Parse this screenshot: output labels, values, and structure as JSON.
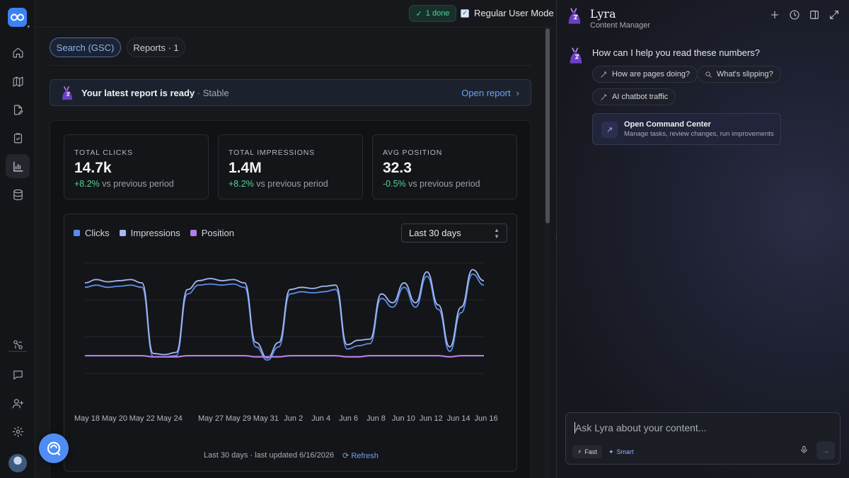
{
  "topbar": {
    "done_label": "1 done",
    "mode_label": "Regular User Mode",
    "mode_checked": true
  },
  "tabs": [
    {
      "label": "Search (GSC)",
      "active": true
    },
    {
      "label": "Reports · 1",
      "active": false
    }
  ],
  "banner": {
    "title": "Your latest report is ready",
    "separator": "·",
    "status": "Stable",
    "action": "Open report"
  },
  "stats": [
    {
      "label": "TOTAL CLICKS",
      "value": "14.7k",
      "delta": "+8.2%",
      "suffix": "vs previous period",
      "delta_color": "#4fd39a"
    },
    {
      "label": "TOTAL IMPRESSIONS",
      "value": "1.4M",
      "delta": "+8.2%",
      "suffix": "vs previous period",
      "delta_color": "#4fd39a"
    },
    {
      "label": "AVG POSITION",
      "value": "32.3",
      "delta": "-0.5%",
      "suffix": "vs previous period",
      "delta_color": "#4fd39a"
    }
  ],
  "chart": {
    "range_select": "Last 30 days",
    "footer": "Last 30 days · last updated 6/16/2026",
    "refresh": "Refresh"
  },
  "chart_data": {
    "type": "line",
    "x_tick_labels": [
      "May 18",
      "May 20",
      "May 22",
      "May 24",
      "May 27",
      "May 29",
      "May 31",
      "Jun 2",
      "Jun 4",
      "Jun 6",
      "Jun 8",
      "Jun 10",
      "Jun 12",
      "Jun 14",
      "Jun 16"
    ],
    "y_axis_visible": false,
    "grid": true,
    "legend_position": "top-left",
    "series": [
      {
        "name": "Clicks",
        "color": "#5b8def",
        "values": [
          0.78,
          0.8,
          0.78,
          0.79,
          0.8,
          0.78,
          0.15,
          0.15,
          0.16,
          0.72,
          0.8,
          0.81,
          0.8,
          0.81,
          0.78,
          0.24,
          0.12,
          0.24,
          0.72,
          0.74,
          0.73,
          0.74,
          0.76,
          0.22,
          0.25,
          0.27,
          0.68,
          0.6,
          0.78,
          0.6,
          0.88,
          0.58,
          0.2,
          0.55,
          0.9,
          0.8
        ]
      },
      {
        "name": "Impressions",
        "color": "#a3b9f0",
        "values": [
          0.82,
          0.85,
          0.83,
          0.84,
          0.85,
          0.82,
          0.18,
          0.17,
          0.19,
          0.76,
          0.84,
          0.86,
          0.84,
          0.85,
          0.82,
          0.28,
          0.14,
          0.28,
          0.76,
          0.78,
          0.77,
          0.79,
          0.8,
          0.26,
          0.3,
          0.31,
          0.72,
          0.64,
          0.82,
          0.64,
          0.92,
          0.62,
          0.24,
          0.6,
          0.94,
          0.84
        ]
      },
      {
        "name": "Position",
        "color": "#b57ee8",
        "values": [
          0.16,
          0.16,
          0.16,
          0.16,
          0.16,
          0.16,
          0.15,
          0.15,
          0.15,
          0.16,
          0.16,
          0.16,
          0.16,
          0.16,
          0.16,
          0.15,
          0.15,
          0.15,
          0.16,
          0.16,
          0.16,
          0.16,
          0.16,
          0.15,
          0.15,
          0.16,
          0.16,
          0.16,
          0.16,
          0.16,
          0.16,
          0.16,
          0.15,
          0.16,
          0.16,
          0.16
        ]
      }
    ]
  },
  "assistant": {
    "name": "Lyra",
    "role": "Content Manager",
    "question": "How can I help you read these numbers?",
    "chips": [
      "How are pages doing?",
      "What's slipping?",
      "AI chatbot traffic"
    ],
    "command_center": {
      "title": "Open Command Center",
      "subtitle": "Manage tasks, review changes, run improvements"
    },
    "input_placeholder": "Ask Lyra about your content...",
    "mode_fast": "Fast",
    "mode_smart": "Smart"
  },
  "icons": {
    "rail": [
      "home-icon",
      "map-icon",
      "document-edit-icon",
      "clipboard-check-icon",
      "bar-chart-icon",
      "database-icon",
      "plugins-icon",
      "chat-bubble-icon",
      "add-user-icon",
      "settings-icon"
    ],
    "header": [
      "plus-icon",
      "history-icon",
      "panel-icon",
      "expand-icon"
    ]
  }
}
